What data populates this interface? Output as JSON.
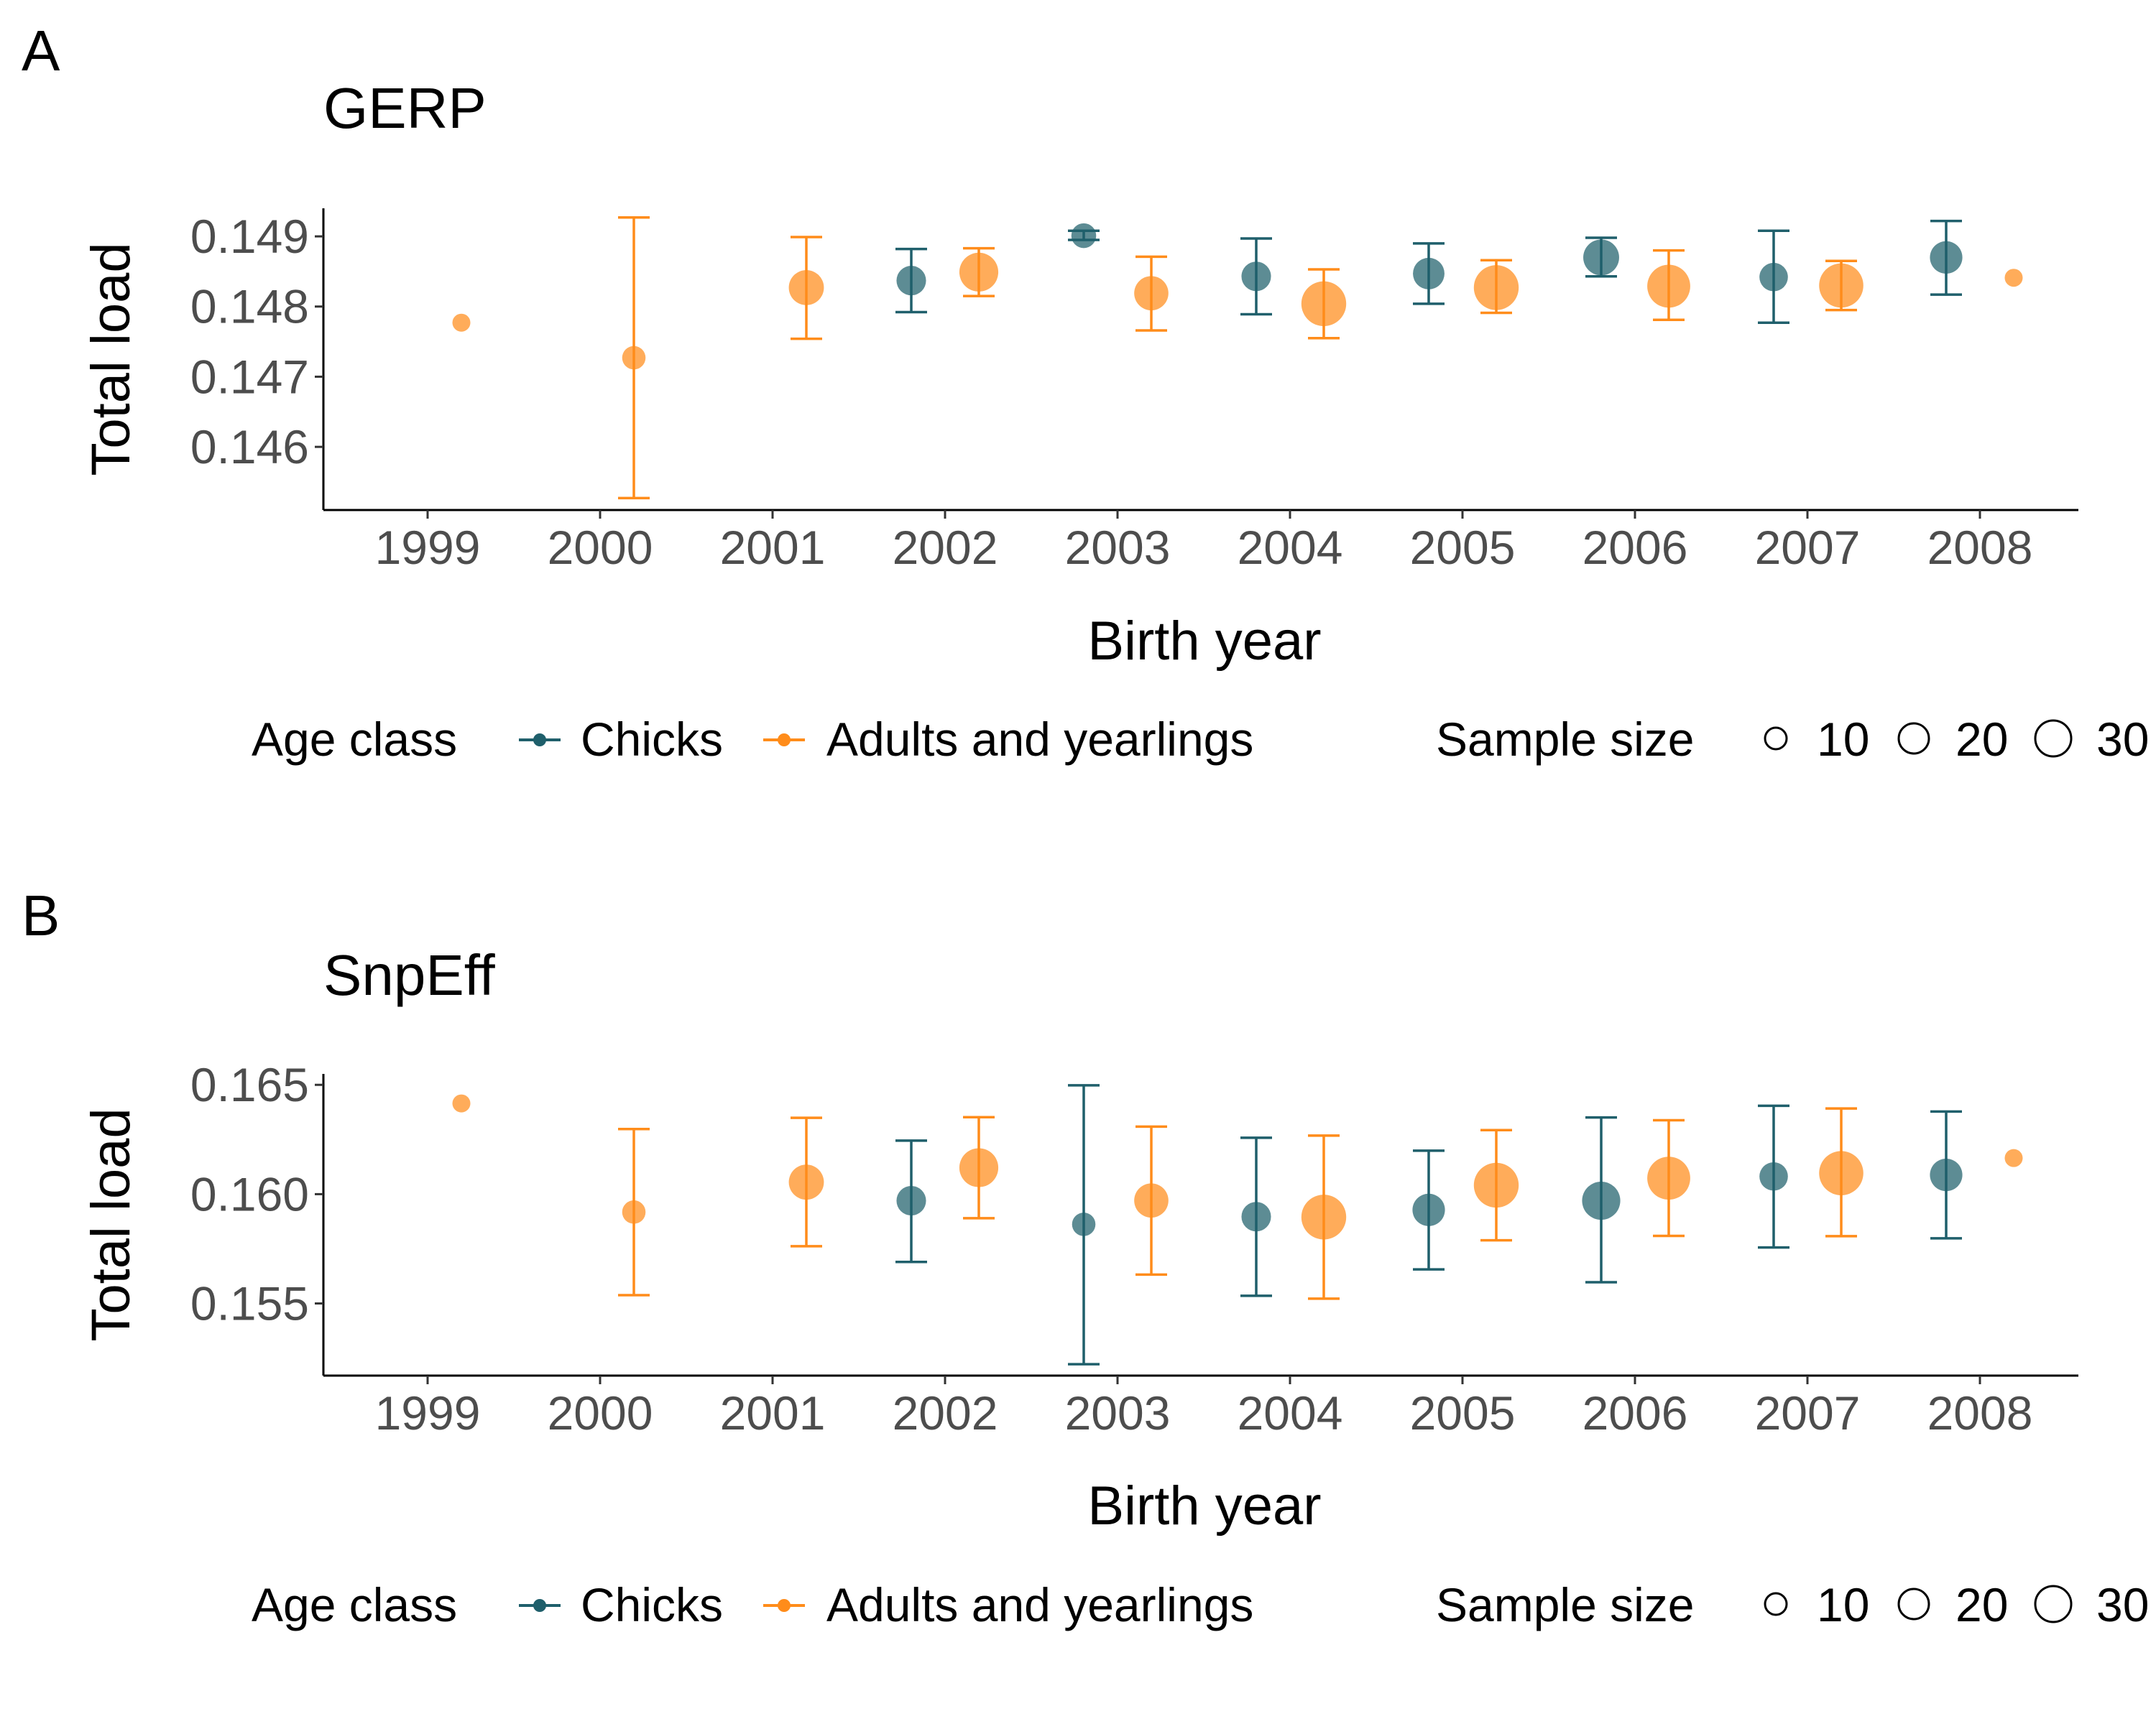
{
  "colors": {
    "chicks": "#1f5f6b",
    "adults": "#ff8c1a"
  },
  "chart_data": [
    {
      "type": "scatter",
      "panel_label": "A",
      "title": "GERP",
      "xlabel": "Birth year",
      "ylabel": "Total load",
      "ylim": [
        0.1451,
        0.1494
      ],
      "yticks": [
        0.146,
        0.147,
        0.148,
        0.149
      ],
      "ytick_labels": [
        "0.146",
        "0.147",
        "0.148",
        "0.149"
      ],
      "xticks": [
        1999,
        2000,
        2001,
        2002,
        2003,
        2004,
        2005,
        2006,
        2007,
        2008
      ],
      "xtick_labels": [
        "1999",
        "2000",
        "2001",
        "2002",
        "2003",
        "2004",
        "2005",
        "2006",
        "2007",
        "2008"
      ],
      "grid": false,
      "legend": {
        "position": "bottom",
        "color_title": "Age class",
        "size_title": "Sample size",
        "size_values": [
          "10",
          "20",
          "30"
        ]
      },
      "series": [
        {
          "name": "Chicks",
          "color_key": "chicks",
          "points": [
            {
              "x": 2002,
              "y": 0.14837,
              "ymin": 0.14792,
              "ymax": 0.14882,
              "n": 10
            },
            {
              "x": 2003,
              "y": 0.14901,
              "ymin": 0.14895,
              "ymax": 0.14908,
              "n": 6
            },
            {
              "x": 2004,
              "y": 0.14843,
              "ymin": 0.14789,
              "ymax": 0.14897,
              "n": 10
            },
            {
              "x": 2005,
              "y": 0.14847,
              "ymin": 0.14804,
              "ymax": 0.1489,
              "n": 12
            },
            {
              "x": 2006,
              "y": 0.1487,
              "ymin": 0.14843,
              "ymax": 0.14898,
              "n": 17
            },
            {
              "x": 2007,
              "y": 0.14842,
              "ymin": 0.14777,
              "ymax": 0.14908,
              "n": 9
            },
            {
              "x": 2008,
              "y": 0.1487,
              "ymin": 0.14817,
              "ymax": 0.14922,
              "n": 13
            }
          ]
        },
        {
          "name": "Adults and yearlings",
          "color_key": "adults",
          "points": [
            {
              "x": 1999,
              "y": 0.14777,
              "ymin": 0.14777,
              "ymax": 0.14777,
              "n": 2
            },
            {
              "x": 2000,
              "y": 0.14727,
              "ymin": 0.14527,
              "ymax": 0.14927,
              "n": 5
            },
            {
              "x": 2001,
              "y": 0.14827,
              "ymin": 0.14754,
              "ymax": 0.14899,
              "n": 16
            },
            {
              "x": 2002,
              "y": 0.14849,
              "ymin": 0.14815,
              "ymax": 0.14883,
              "n": 21
            },
            {
              "x": 2003,
              "y": 0.14819,
              "ymin": 0.14766,
              "ymax": 0.14871,
              "n": 15
            },
            {
              "x": 2004,
              "y": 0.14804,
              "ymin": 0.14755,
              "ymax": 0.14853,
              "n": 30
            },
            {
              "x": 2005,
              "y": 0.14827,
              "ymin": 0.14791,
              "ymax": 0.14866,
              "n": 30
            },
            {
              "x": 2006,
              "y": 0.14829,
              "ymin": 0.14781,
              "ymax": 0.1488,
              "n": 27
            },
            {
              "x": 2007,
              "y": 0.1483,
              "ymin": 0.14795,
              "ymax": 0.14865,
              "n": 29
            },
            {
              "x": 2008,
              "y": 0.14841,
              "ymin": 0.14841,
              "ymax": 0.14841,
              "n": 2
            }
          ]
        }
      ]
    },
    {
      "type": "scatter",
      "panel_label": "B",
      "title": "SnpEff",
      "xlabel": "Birth year",
      "ylabel": "Total load",
      "ylim": [
        0.1517,
        0.1655
      ],
      "yticks": [
        0.155,
        0.16,
        0.165
      ],
      "ytick_labels": [
        "0.155",
        "0.160",
        "0.165"
      ],
      "xticks": [
        1999,
        2000,
        2001,
        2002,
        2003,
        2004,
        2005,
        2006,
        2007,
        2008
      ],
      "xtick_labels": [
        "1999",
        "2000",
        "2001",
        "2002",
        "2003",
        "2004",
        "2005",
        "2006",
        "2007",
        "2008"
      ],
      "grid": false,
      "legend": {
        "position": "bottom",
        "color_title": "Age class",
        "size_title": "Sample size",
        "size_values": [
          "10",
          "20",
          "30"
        ]
      },
      "series": [
        {
          "name": "Chicks",
          "color_key": "chicks",
          "points": [
            {
              "x": 2002,
              "y": 0.1597,
              "ymin": 0.1569,
              "ymax": 0.16245,
              "n": 10
            },
            {
              "x": 2003,
              "y": 0.15862,
              "ymin": 0.15222,
              "ymax": 0.16498,
              "n": 5
            },
            {
              "x": 2004,
              "y": 0.15897,
              "ymin": 0.15535,
              "ymax": 0.16258,
              "n": 10
            },
            {
              "x": 2005,
              "y": 0.15928,
              "ymin": 0.15656,
              "ymax": 0.16199,
              "n": 13
            },
            {
              "x": 2006,
              "y": 0.1597,
              "ymin": 0.15597,
              "ymax": 0.16351,
              "n": 20
            },
            {
              "x": 2007,
              "y": 0.16081,
              "ymin": 0.15756,
              "ymax": 0.16404,
              "n": 9
            },
            {
              "x": 2008,
              "y": 0.16088,
              "ymin": 0.15798,
              "ymax": 0.16378,
              "n": 13
            }
          ]
        },
        {
          "name": "Adults and yearlings",
          "color_key": "adults",
          "points": [
            {
              "x": 1999,
              "y": 0.16415,
              "ymin": 0.16415,
              "ymax": 0.16415,
              "n": 2
            },
            {
              "x": 2000,
              "y": 0.15918,
              "ymin": 0.15538,
              "ymax": 0.16298,
              "n": 5
            },
            {
              "x": 2001,
              "y": 0.16055,
              "ymin": 0.15762,
              "ymax": 0.16349,
              "n": 16
            },
            {
              "x": 2002,
              "y": 0.16121,
              "ymin": 0.1589,
              "ymax": 0.16352,
              "n": 21
            },
            {
              "x": 2003,
              "y": 0.15971,
              "ymin": 0.15632,
              "ymax": 0.16309,
              "n": 15
            },
            {
              "x": 2004,
              "y": 0.15895,
              "ymin": 0.15522,
              "ymax": 0.16268,
              "n": 30
            },
            {
              "x": 2005,
              "y": 0.16041,
              "ymin": 0.15789,
              "ymax": 0.16293,
              "n": 30
            },
            {
              "x": 2006,
              "y": 0.16073,
              "ymin": 0.15809,
              "ymax": 0.16338,
              "n": 27
            },
            {
              "x": 2007,
              "y": 0.16096,
              "ymin": 0.15808,
              "ymax": 0.16392,
              "n": 29
            },
            {
              "x": 2008,
              "y": 0.16165,
              "ymin": 0.16165,
              "ymax": 0.16165,
              "n": 2
            }
          ]
        }
      ]
    }
  ]
}
